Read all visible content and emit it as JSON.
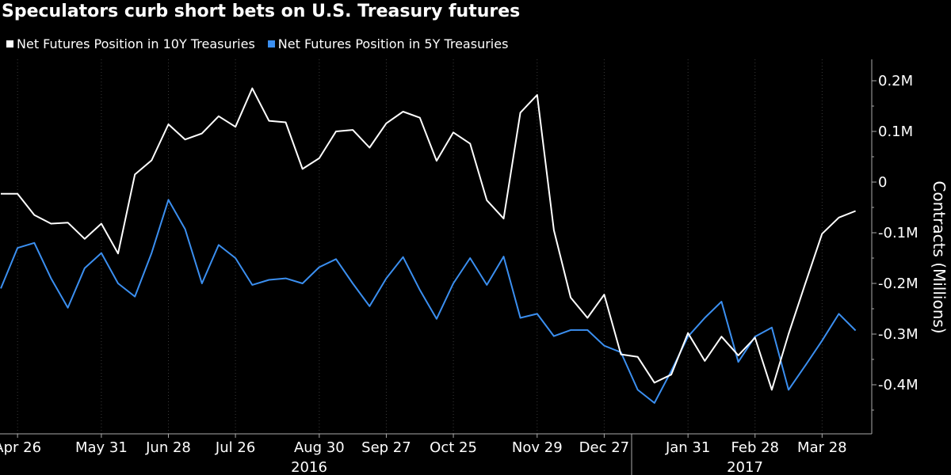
{
  "chart_data": {
    "type": "line",
    "title": "Speculators curb short bets on U.S. Treasury futures",
    "ylabel": "Contracts (Millions)",
    "ylim": [
      -0.5,
      0.24
    ],
    "yticks": [
      {
        "value": 0.2,
        "label": "0.2M"
      },
      {
        "value": 0.1,
        "label": "0.1M"
      },
      {
        "value": 0,
        "label": "0"
      },
      {
        "value": -0.1,
        "label": "-0.1M"
      },
      {
        "value": -0.2,
        "label": "-0.2M"
      },
      {
        "value": -0.3,
        "label": "-0.3M"
      },
      {
        "value": -0.4,
        "label": "-0.4M"
      }
    ],
    "xticks": [
      {
        "index": 1,
        "label": "Apr 26"
      },
      {
        "index": 6,
        "label": "May 31"
      },
      {
        "index": 10,
        "label": "Jun 28"
      },
      {
        "index": 14,
        "label": "Jul 26"
      },
      {
        "index": 19,
        "label": "Aug 30"
      },
      {
        "index": 23,
        "label": "Sep 27"
      },
      {
        "index": 27,
        "label": "Oct 25"
      },
      {
        "index": 32,
        "label": "Nov 29"
      },
      {
        "index": 36,
        "label": "Dec 27"
      },
      {
        "index": 41,
        "label": "Jan 31"
      },
      {
        "index": 45,
        "label": "Feb 28"
      },
      {
        "index": 49,
        "label": "Mar 28"
      }
    ],
    "year_labels": [
      "2016",
      "2017"
    ],
    "series": [
      {
        "name": "Net Futures Position in 10Y Treasuries",
        "color": "#ffffff",
        "values": [
          -0.023,
          -0.023,
          -0.065,
          -0.082,
          -0.08,
          -0.112,
          -0.082,
          -0.141,
          0.015,
          0.043,
          0.114,
          0.084,
          0.096,
          0.13,
          0.109,
          0.185,
          0.121,
          0.118,
          0.026,
          0.047,
          0.1,
          0.103,
          0.068,
          0.116,
          0.139,
          0.127,
          0.042,
          0.098,
          0.076,
          -0.036,
          -0.072,
          0.137,
          0.172,
          -0.095,
          -0.228,
          -0.268,
          -0.222,
          -0.34,
          -0.345,
          -0.396,
          -0.38,
          -0.298,
          -0.353,
          -0.305,
          -0.342,
          -0.307,
          -0.41,
          -0.3,
          -0.2,
          -0.102,
          -0.07,
          -0.057
        ]
      },
      {
        "name": "Net Futures Position in 5Y Treasuries",
        "color": "#3b8ff0",
        "values": [
          -0.21,
          -0.13,
          -0.12,
          -0.19,
          -0.248,
          -0.17,
          -0.14,
          -0.2,
          -0.226,
          -0.14,
          -0.035,
          -0.093,
          -0.2,
          -0.124,
          -0.15,
          -0.203,
          -0.193,
          -0.19,
          -0.2,
          -0.168,
          -0.152,
          -0.2,
          -0.245,
          -0.19,
          -0.148,
          -0.213,
          -0.27,
          -0.2,
          -0.15,
          -0.203,
          -0.147,
          -0.268,
          -0.26,
          -0.304,
          -0.292,
          -0.292,
          -0.323,
          -0.336,
          -0.41,
          -0.436,
          -0.373,
          -0.305,
          -0.268,
          -0.236,
          -0.355,
          -0.305,
          -0.287,
          -0.41,
          -0.362,
          -0.313,
          -0.26,
          -0.293
        ]
      }
    ]
  }
}
